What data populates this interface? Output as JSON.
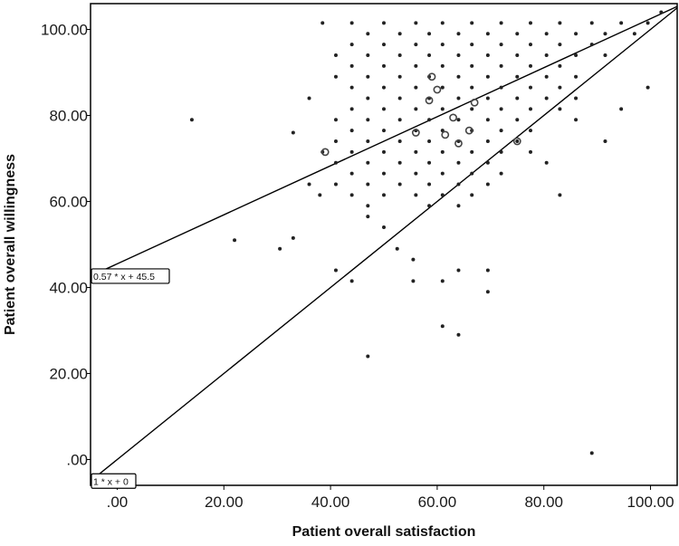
{
  "chart_data": {
    "type": "scatter",
    "xlabel": "Patient overall satisfaction",
    "ylabel": "Patient overall willingness",
    "xlim": [
      -5,
      105
    ],
    "ylim": [
      -6,
      106
    ],
    "x_ticks": [
      {
        "value": 0,
        "label": ".00"
      },
      {
        "value": 20,
        "label": "20.00"
      },
      {
        "value": 40,
        "label": "40.00"
      },
      {
        "value": 60,
        "label": "60.00"
      },
      {
        "value": 80,
        "label": "80.00"
      },
      {
        "value": 100,
        "label": "100.00"
      }
    ],
    "y_ticks": [
      {
        "value": 0,
        "label": ".00"
      },
      {
        "value": 20,
        "label": "20.00"
      },
      {
        "value": 40,
        "label": "40.00"
      },
      {
        "value": 60,
        "label": "60.00"
      },
      {
        "value": 80,
        "label": "80.00"
      },
      {
        "value": 100,
        "label": "100.00"
      }
    ],
    "grid": false,
    "lines": [
      {
        "label": "0.57 * x + 45.5",
        "slope": 0.57,
        "intercept": 45.5
      },
      {
        "label": "1 * x + 0",
        "slope": 1,
        "intercept": 0
      }
    ],
    "points": [
      [
        14,
        79
      ],
      [
        22,
        51
      ],
      [
        30.5,
        49
      ],
      [
        33,
        51.5
      ],
      [
        33,
        76
      ],
      [
        36,
        64
      ],
      [
        36,
        84
      ],
      [
        38,
        61.5
      ],
      [
        38.5,
        71.5
      ],
      [
        38.5,
        101.5
      ],
      [
        41,
        64
      ],
      [
        41,
        69
      ],
      [
        41,
        74
      ],
      [
        41,
        79
      ],
      [
        41,
        89
      ],
      [
        41,
        94
      ],
      [
        41,
        44
      ],
      [
        44,
        41.5
      ],
      [
        44,
        61.5
      ],
      [
        44,
        66.5
      ],
      [
        44,
        71.5
      ],
      [
        44,
        76.5
      ],
      [
        44,
        81.5
      ],
      [
        44,
        86.5
      ],
      [
        44,
        91.5
      ],
      [
        44,
        96.5
      ],
      [
        44,
        101.5
      ],
      [
        47,
        24
      ],
      [
        47,
        56.5
      ],
      [
        47,
        59
      ],
      [
        47,
        64
      ],
      [
        47,
        69
      ],
      [
        47,
        74
      ],
      [
        47,
        79
      ],
      [
        47,
        84
      ],
      [
        47,
        89
      ],
      [
        47,
        94
      ],
      [
        47,
        99
      ],
      [
        50,
        54
      ],
      [
        50,
        61.5
      ],
      [
        50,
        66.5
      ],
      [
        50,
        71.5
      ],
      [
        50,
        76.5
      ],
      [
        50,
        81.5
      ],
      [
        50,
        86.5
      ],
      [
        50,
        91.5
      ],
      [
        50,
        96.5
      ],
      [
        50,
        101.5
      ],
      [
        52.5,
        49
      ],
      [
        53,
        64
      ],
      [
        53,
        69
      ],
      [
        53,
        74
      ],
      [
        53,
        79
      ],
      [
        53,
        84
      ],
      [
        53,
        89
      ],
      [
        53,
        94
      ],
      [
        53,
        99
      ],
      [
        55.5,
        41.5
      ],
      [
        55.5,
        46.5
      ],
      [
        56,
        61.5
      ],
      [
        56,
        66.5
      ],
      [
        56,
        71.5
      ],
      [
        56,
        76.5
      ],
      [
        56,
        81.5
      ],
      [
        56,
        86.5
      ],
      [
        56,
        91.5
      ],
      [
        56,
        96.5
      ],
      [
        56,
        101.5
      ],
      [
        58.5,
        59
      ],
      [
        58.5,
        64
      ],
      [
        58.5,
        69
      ],
      [
        58.5,
        74
      ],
      [
        58.5,
        79
      ],
      [
        58.5,
        84
      ],
      [
        58.5,
        89
      ],
      [
        58.5,
        94
      ],
      [
        58.5,
        99
      ],
      [
        61,
        31
      ],
      [
        61,
        41.5
      ],
      [
        61,
        61.5
      ],
      [
        61,
        66.5
      ],
      [
        61,
        71.5
      ],
      [
        61,
        76.5
      ],
      [
        61,
        81.5
      ],
      [
        61,
        86.5
      ],
      [
        61,
        91.5
      ],
      [
        61,
        96.5
      ],
      [
        61,
        101.5
      ],
      [
        64,
        29
      ],
      [
        64,
        44
      ],
      [
        64,
        59
      ],
      [
        64,
        64
      ],
      [
        64,
        69
      ],
      [
        64,
        74
      ],
      [
        64,
        79
      ],
      [
        64,
        84
      ],
      [
        64,
        89
      ],
      [
        64,
        94
      ],
      [
        64,
        99
      ],
      [
        66.5,
        61.5
      ],
      [
        66.5,
        66.5
      ],
      [
        66.5,
        71.5
      ],
      [
        66.5,
        76.5
      ],
      [
        66.5,
        81.5
      ],
      [
        66.5,
        86.5
      ],
      [
        66.5,
        91.5
      ],
      [
        66.5,
        96.5
      ],
      [
        66.5,
        101.5
      ],
      [
        69.5,
        39
      ],
      [
        69.5,
        44
      ],
      [
        69.5,
        64
      ],
      [
        69.5,
        69
      ],
      [
        69.5,
        74
      ],
      [
        69.5,
        79
      ],
      [
        69.5,
        84
      ],
      [
        69.5,
        89
      ],
      [
        69.5,
        94
      ],
      [
        69.5,
        99
      ],
      [
        72,
        66.5
      ],
      [
        72,
        71.5
      ],
      [
        72,
        76.5
      ],
      [
        72,
        81.5
      ],
      [
        72,
        86.5
      ],
      [
        72,
        91.5
      ],
      [
        72,
        96.5
      ],
      [
        72,
        101.5
      ],
      [
        75,
        74
      ],
      [
        75,
        79
      ],
      [
        75,
        84
      ],
      [
        75,
        89
      ],
      [
        75,
        94
      ],
      [
        75,
        99
      ],
      [
        77.5,
        71.5
      ],
      [
        77.5,
        76.5
      ],
      [
        77.5,
        81.5
      ],
      [
        77.5,
        86.5
      ],
      [
        77.5,
        91.5
      ],
      [
        77.5,
        96.5
      ],
      [
        77.5,
        101.5
      ],
      [
        80.5,
        69
      ],
      [
        80.5,
        84
      ],
      [
        80.5,
        89
      ],
      [
        80.5,
        94
      ],
      [
        80.5,
        99
      ],
      [
        83,
        61.5
      ],
      [
        83,
        81.5
      ],
      [
        83,
        86.5
      ],
      [
        83,
        91.5
      ],
      [
        83,
        96.5
      ],
      [
        83,
        101.5
      ],
      [
        86,
        79
      ],
      [
        86,
        84
      ],
      [
        86,
        89
      ],
      [
        86,
        94
      ],
      [
        86,
        99
      ],
      [
        89,
        1.5
      ],
      [
        89,
        96.5
      ],
      [
        89,
        101.5
      ],
      [
        91.5,
        74
      ],
      [
        91.5,
        94
      ],
      [
        91.5,
        99
      ],
      [
        94.5,
        81.5
      ],
      [
        94.5,
        101.5
      ],
      [
        97,
        99
      ],
      [
        99.5,
        86.5
      ],
      [
        99.5,
        101.5
      ],
      [
        102,
        104
      ]
    ],
    "large_points": [
      [
        39,
        71.5
      ],
      [
        56,
        76
      ],
      [
        58.5,
        83.5
      ],
      [
        59,
        89
      ],
      [
        60,
        86
      ],
      [
        61.5,
        75.5
      ],
      [
        63,
        79.5
      ],
      [
        64,
        73.5
      ],
      [
        66,
        76.5
      ],
      [
        67,
        83
      ],
      [
        75,
        74
      ]
    ]
  }
}
